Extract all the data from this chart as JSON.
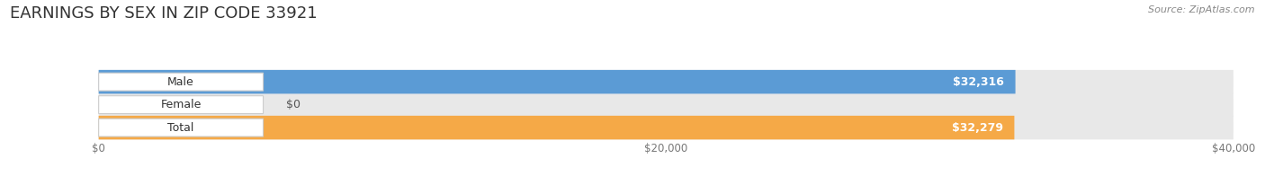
{
  "title": "EARNINGS BY SEX IN ZIP CODE 33921",
  "source": "Source: ZipAtlas.com",
  "categories": [
    "Male",
    "Female",
    "Total"
  ],
  "values": [
    32316,
    0,
    32279
  ],
  "max_value": 40000,
  "bar_colors": [
    "#5b9bd5",
    "#f4a0b5",
    "#f5a947"
  ],
  "bar_bg_color": "#e8e8e8",
  "value_labels": [
    "$32,316",
    "$0",
    "$32,279"
  ],
  "x_ticks": [
    0,
    20000,
    40000
  ],
  "x_tick_labels": [
    "$0",
    "$20,000",
    "$40,000"
  ],
  "title_fontsize": 13,
  "label_fontsize": 9,
  "tick_fontsize": 8.5,
  "source_fontsize": 8,
  "bg_color": "#ffffff",
  "bar_height": 0.52
}
